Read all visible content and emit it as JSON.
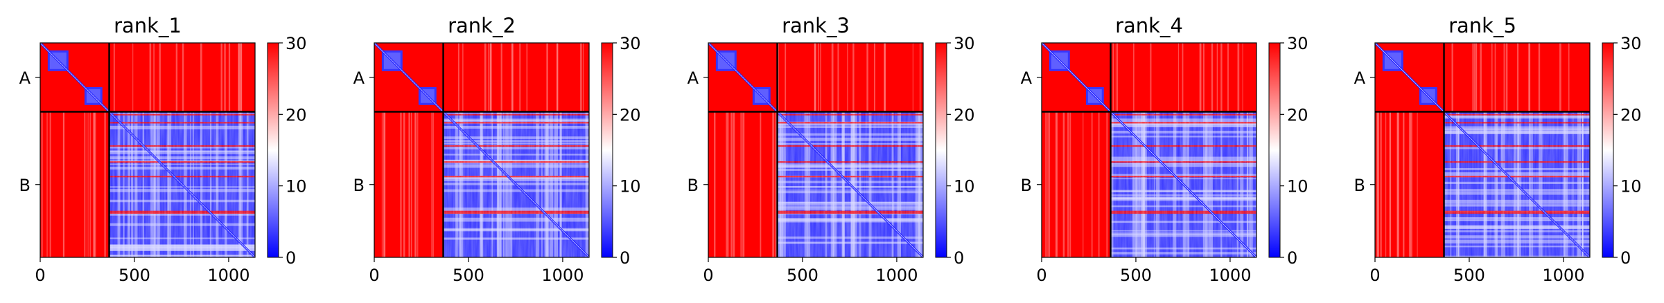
{
  "figure": {
    "panel_labels": [
      "A",
      "B"
    ]
  },
  "colors": {
    "high": "#ff0000",
    "mid": "#ffffff",
    "low": "#0000ff",
    "boundary": "#000000"
  },
  "chart_data": [
    {
      "type": "heatmap",
      "title": "rank_1",
      "xlabel": "",
      "ylabel": "",
      "xlim": [
        0,
        1140
      ],
      "x_ticks": [
        0,
        500,
        1000
      ],
      "y_tick_labels": [
        "A",
        "B"
      ],
      "chain_boundary": 366,
      "colorbar": {
        "vmin": 0,
        "vmax": 30,
        "ticks": [
          0,
          10,
          20,
          30
        ],
        "colormap": "bwr"
      },
      "blocks": [
        {
          "rows": "A",
          "cols": "A",
          "pattern": "two blue domains along diagonal (~0-180, ~180-366), red elsewhere"
        },
        {
          "rows": "A",
          "cols": "B",
          "value": 30
        },
        {
          "rows": "B",
          "cols": "A",
          "value": 30
        },
        {
          "rows": "B",
          "cols": "B",
          "pattern": "mostly blue/white with diagonal, red horizontal stripes"
        }
      ]
    },
    {
      "type": "heatmap",
      "title": "rank_2",
      "xlabel": "",
      "ylabel": "",
      "xlim": [
        0,
        1140
      ],
      "x_ticks": [
        0,
        500,
        1000
      ],
      "y_tick_labels": [
        "A",
        "B"
      ],
      "chain_boundary": 366,
      "colorbar": {
        "vmin": 0,
        "vmax": 30,
        "ticks": [
          0,
          10,
          20,
          30
        ],
        "colormap": "bwr"
      },
      "blocks": [
        {
          "rows": "A",
          "cols": "A",
          "pattern": "two blue domains along diagonal, red elsewhere"
        },
        {
          "rows": "A",
          "cols": "B",
          "value": 30
        },
        {
          "rows": "B",
          "cols": "A",
          "value": 30
        },
        {
          "rows": "B",
          "cols": "B",
          "pattern": "mostly blue/white with diagonal, red horizontal stripes"
        }
      ]
    },
    {
      "type": "heatmap",
      "title": "rank_3",
      "xlabel": "",
      "ylabel": "",
      "xlim": [
        0,
        1140
      ],
      "x_ticks": [
        0,
        500,
        1000
      ],
      "y_tick_labels": [
        "A",
        "B"
      ],
      "chain_boundary": 366,
      "colorbar": {
        "vmin": 0,
        "vmax": 30,
        "ticks": [
          0,
          10,
          20,
          30
        ],
        "colormap": "bwr"
      },
      "blocks": [
        {
          "rows": "A",
          "cols": "A",
          "pattern": "two blue domains along diagonal, red elsewhere"
        },
        {
          "rows": "A",
          "cols": "B",
          "value": 30
        },
        {
          "rows": "B",
          "cols": "A",
          "value": 30
        },
        {
          "rows": "B",
          "cols": "B",
          "pattern": "mostly blue/white with diagonal, red horizontal stripes"
        }
      ]
    },
    {
      "type": "heatmap",
      "title": "rank_4",
      "xlabel": "",
      "ylabel": "",
      "xlim": [
        0,
        1140
      ],
      "x_ticks": [
        0,
        500,
        1000
      ],
      "y_tick_labels": [
        "A",
        "B"
      ],
      "chain_boundary": 366,
      "colorbar": {
        "vmin": 0,
        "vmax": 30,
        "ticks": [
          0,
          10,
          20,
          30
        ],
        "colormap": "bwr"
      },
      "blocks": [
        {
          "rows": "A",
          "cols": "A",
          "pattern": "two blue domains along diagonal, red elsewhere"
        },
        {
          "rows": "A",
          "cols": "B",
          "value": 30
        },
        {
          "rows": "B",
          "cols": "A",
          "value": 30
        },
        {
          "rows": "B",
          "cols": "B",
          "pattern": "mostly blue/white with diagonal, red horizontal stripes"
        }
      ]
    },
    {
      "type": "heatmap",
      "title": "rank_5",
      "xlabel": "",
      "ylabel": "",
      "xlim": [
        0,
        1140
      ],
      "x_ticks": [
        0,
        500,
        1000
      ],
      "y_tick_labels": [
        "A",
        "B"
      ],
      "chain_boundary": 366,
      "colorbar": {
        "vmin": 0,
        "vmax": 30,
        "ticks": [
          0,
          10,
          20,
          30
        ],
        "colormap": "bwr"
      },
      "blocks": [
        {
          "rows": "A",
          "cols": "A",
          "pattern": "two blue domains along diagonal, red elsewhere"
        },
        {
          "rows": "A",
          "cols": "B",
          "value": 30
        },
        {
          "rows": "B",
          "cols": "A",
          "value": 30
        },
        {
          "rows": "B",
          "cols": "B",
          "pattern": "mostly blue/white with diagonal, red horizontal stripes"
        }
      ]
    }
  ]
}
